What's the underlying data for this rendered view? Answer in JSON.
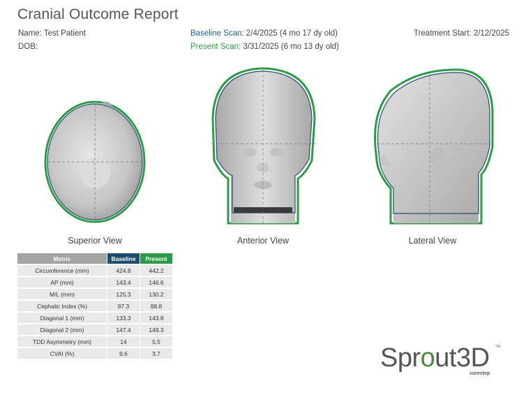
{
  "report": {
    "title": "Cranial Outcome Report",
    "patient_name": "Name: Test Patient",
    "dob_label": "DOB:",
    "baseline_label": "Baseline Scan:",
    "baseline_value": "2/4/2025 (4 mo 17 dy old)",
    "present_label": "Present Scan:",
    "present_value": "3/31/2025 (6 mo 13 dy old)",
    "treatment_start": "Treatment Start: 2/12/2025"
  },
  "views": {
    "superior": "Superior View",
    "anterior": "Anterior View",
    "lateral": "Lateral View"
  },
  "table": {
    "headers": {
      "metric": "Metric",
      "baseline": "Baseline",
      "present": "Present"
    },
    "rows": [
      {
        "metric": "Circumference (mm)",
        "baseline": "424.8",
        "present": "442.2"
      },
      {
        "metric": "AP (mm)",
        "baseline": "143.4",
        "present": "146.6"
      },
      {
        "metric": "M/L (mm)",
        "baseline": "125.3",
        "present": "130.2"
      },
      {
        "metric": "Cephalic Index (%)",
        "baseline": "87.3",
        "present": "88.8"
      },
      {
        "metric": "Diagonal 1 (mm)",
        "baseline": "133.3",
        "present": "143.8"
      },
      {
        "metric": "Diagonal 2 (mm)",
        "baseline": "147.4",
        "present": "149.3"
      },
      {
        "metric": "TDD Asymmetry (mm)",
        "baseline": "14",
        "present": "5.5"
      },
      {
        "metric": "CVAI (%)",
        "baseline": "9.6",
        "present": "3.7"
      }
    ]
  },
  "logo": {
    "part1": "Spr",
    "part2": "o",
    "part3": "ut3D",
    "tm": "TM",
    "sub": "surestep"
  },
  "colors": {
    "baseline": "#1e4d6b",
    "present": "#2e9a48",
    "metric_header": "#a3a3a3",
    "cell": "#e9e9e9"
  }
}
